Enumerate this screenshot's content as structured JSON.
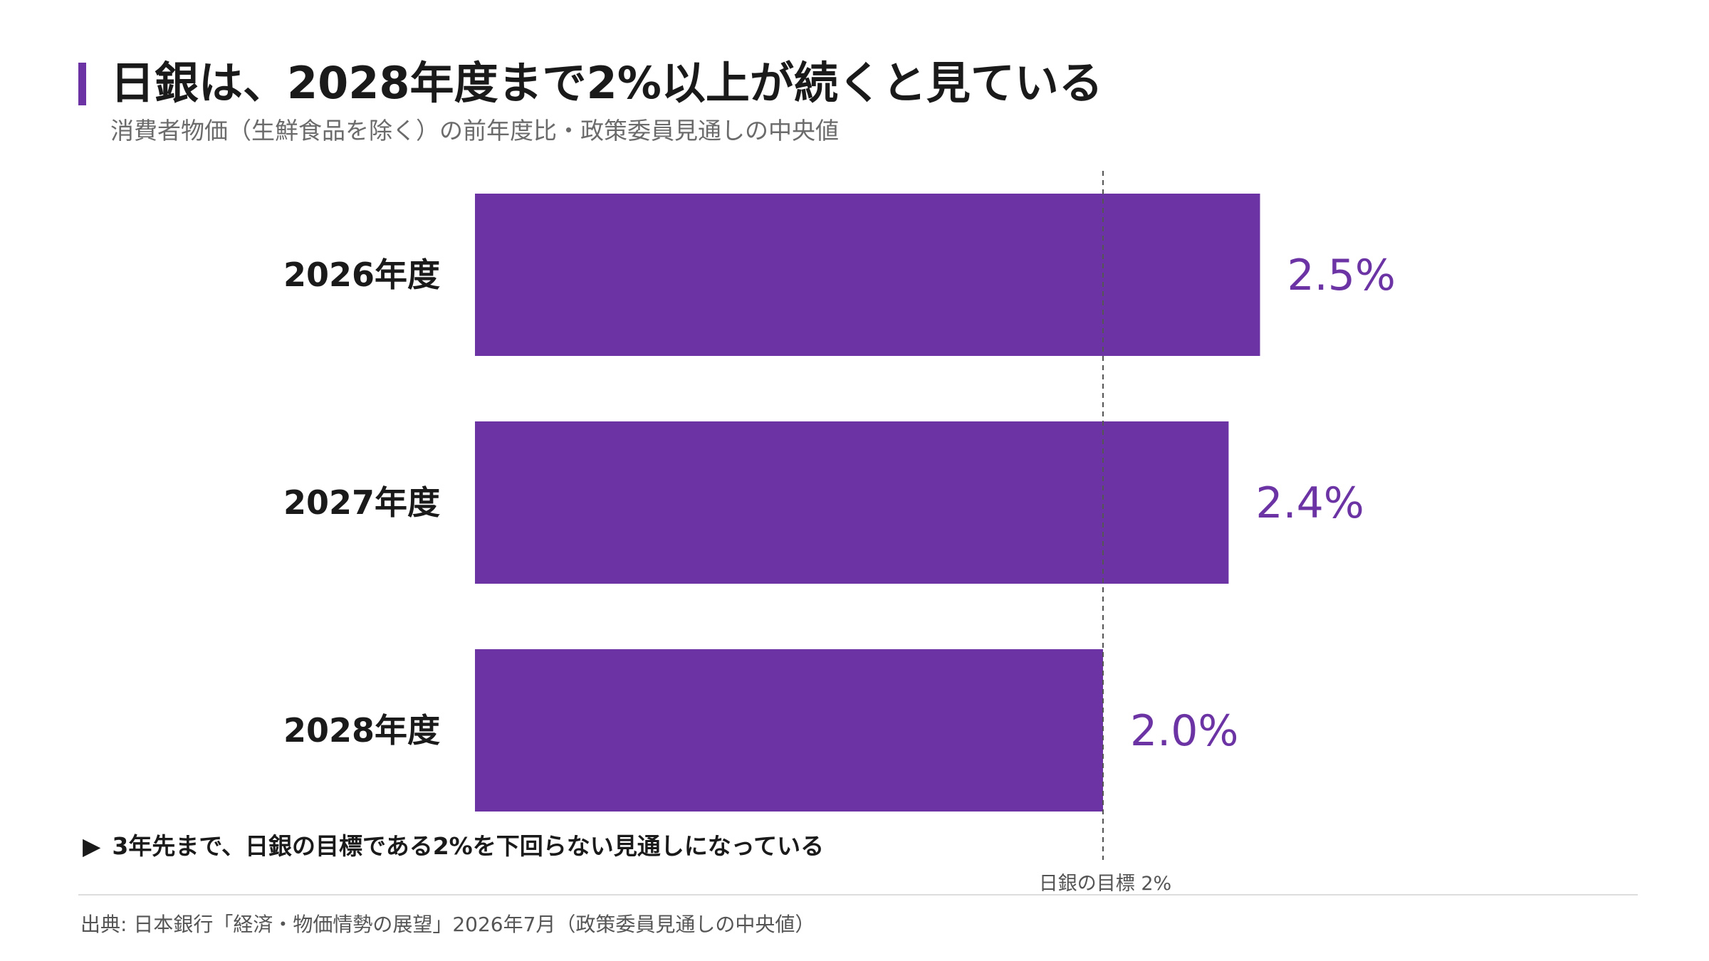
{
  "header": {
    "title": "日銀は、2028年度まで2%以上が続くと見ている",
    "subtitle": "消費者物価（生鮮食品を除く）の前年度比・政策委員見通しの中央値"
  },
  "colors": {
    "accent": "#6b33a3",
    "bar": "#6b33a3",
    "reference_line": "#555555"
  },
  "chart_data": {
    "type": "bar",
    "orientation": "horizontal",
    "title": "",
    "xlabel": "",
    "ylabel": "",
    "categories": [
      "2026年度",
      "2027年度",
      "2028年度"
    ],
    "values": [
      2.5,
      2.4,
      2.0
    ],
    "value_labels": [
      "2.5%",
      "2.4%",
      "2.0%"
    ],
    "xlim": [
      0,
      3.5
    ],
    "grid": false,
    "legend": "none",
    "reference_line": {
      "value": 2.0,
      "style": "dashed",
      "label": "日銀の目標 2%"
    }
  },
  "note": {
    "icon": "triangle-right-icon",
    "text": "3年先まで、日銀の目標である2%を下回らない見通しになっている"
  },
  "source": "出典: 日本銀行「経済・物価情勢の展望」2026年7月（政策委員見通しの中央値）"
}
